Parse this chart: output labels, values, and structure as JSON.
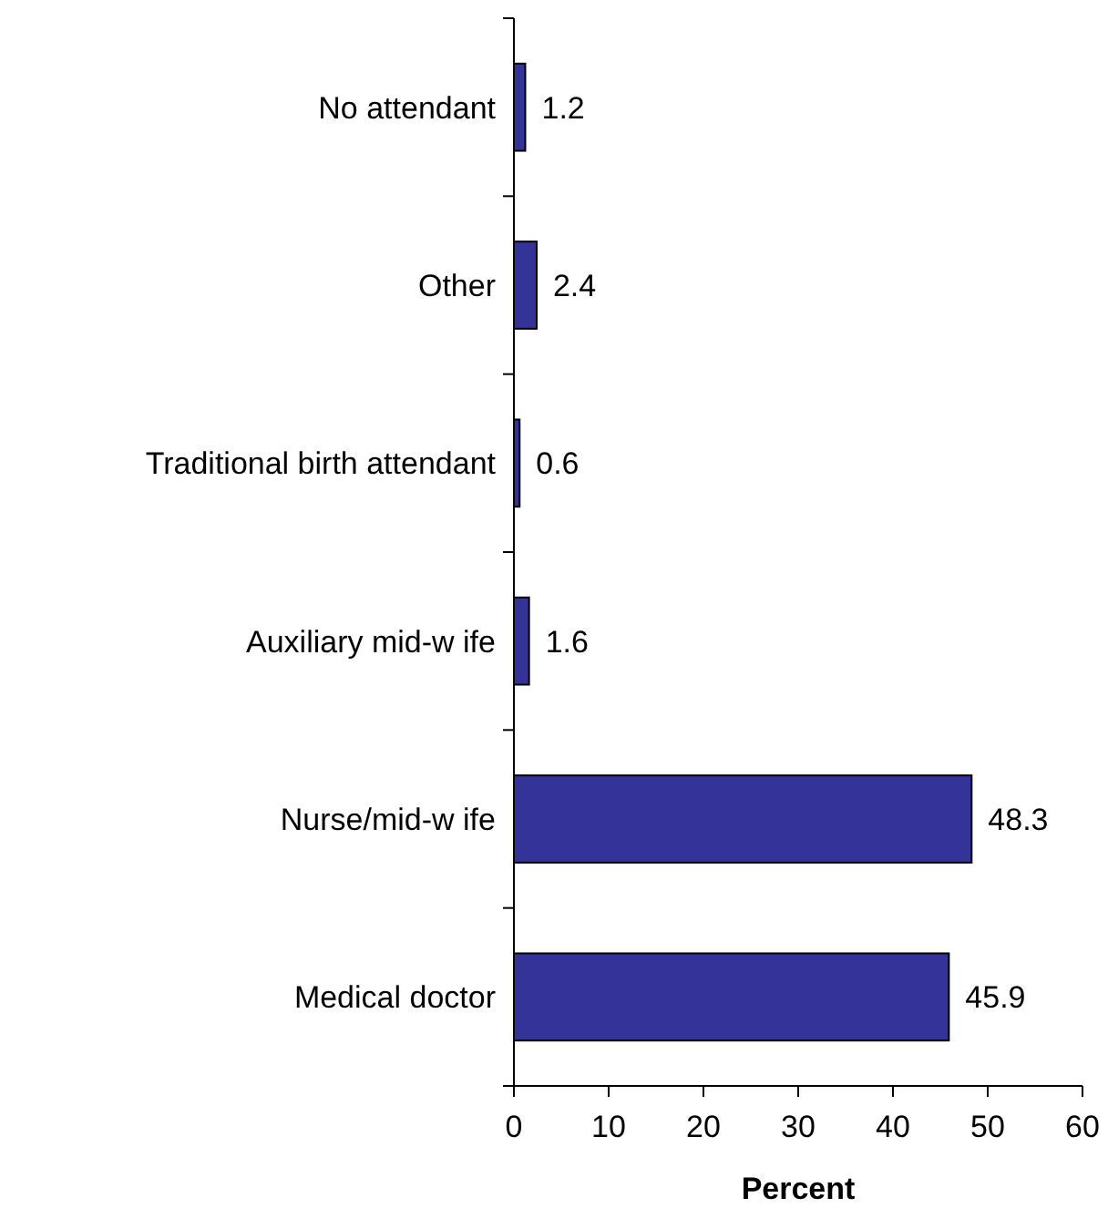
{
  "chart_data": {
    "type": "bar",
    "orientation": "horizontal",
    "xlabel": "Percent",
    "categories": [
      "No attendant",
      "Other",
      "Traditional birth attendant",
      "Auxiliary mid-w ife",
      "Nurse/mid-w ife",
      "Medical doctor"
    ],
    "values": [
      1.2,
      2.4,
      0.6,
      1.6,
      48.3,
      45.9
    ],
    "color": "#333399",
    "xlim": [
      0,
      60
    ],
    "xticks": [
      0,
      10,
      20,
      30,
      40,
      50,
      60
    ],
    "data_labels": true,
    "grid": false
  }
}
